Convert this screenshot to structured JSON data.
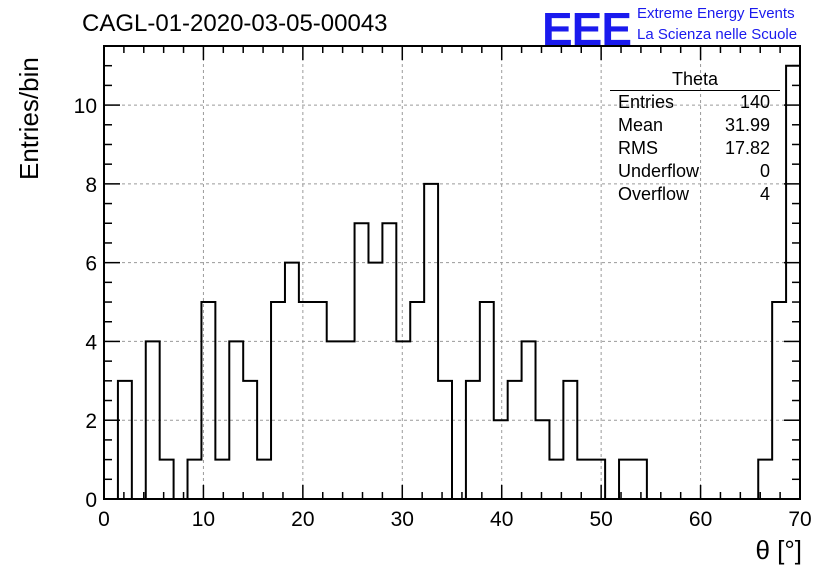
{
  "title": "CAGL-01-2020-03-05-00043",
  "logo": {
    "mark": "EEE",
    "line1": "Extreme Energy Events",
    "line2": "La Scienza nelle Scuole",
    "color": "#1a1aee"
  },
  "stats": {
    "name": "Theta",
    "rows": [
      {
        "label": "Entries",
        "value": "140"
      },
      {
        "label": "Mean",
        "value": "31.99"
      },
      {
        "label": "RMS",
        "value": "17.82"
      },
      {
        "label": "Underflow",
        "value": "0"
      },
      {
        "label": "Overflow",
        "value": "4"
      }
    ]
  },
  "chart_data": {
    "type": "bar",
    "style": "step-histogram",
    "xlabel": "θ [°]",
    "ylabel": "Entries/bin",
    "xlim": [
      0,
      70
    ],
    "ylim": [
      0,
      11.5
    ],
    "xticks": [
      0,
      10,
      20,
      30,
      40,
      50,
      60,
      70
    ],
    "yticks": [
      0,
      2,
      4,
      6,
      8,
      10
    ],
    "grid": true,
    "bin_edges": [
      0,
      1.4,
      2.8,
      4.2,
      5.6,
      7.0,
      8.4,
      9.8,
      11.2,
      12.6,
      14.0,
      15.4,
      16.8,
      18.2,
      19.6,
      21.0,
      22.4,
      23.8,
      25.2,
      26.6,
      28.0,
      29.4,
      30.8,
      32.2,
      33.6,
      35.0,
      36.4,
      37.8,
      39.2,
      40.6,
      42.0,
      43.4,
      44.8,
      46.2,
      47.6,
      49.0,
      50.4,
      51.8,
      53.2,
      54.6,
      56.0,
      57.4,
      58.8,
      60.2,
      61.6,
      63.0,
      64.4,
      65.8,
      67.2,
      68.6,
      70.0
    ],
    "values": [
      0,
      3,
      0,
      4,
      1,
      0,
      1,
      5,
      1,
      4,
      3,
      1,
      5,
      6,
      5,
      5,
      4,
      4,
      7,
      6,
      7,
      4,
      5,
      8,
      3,
      0,
      3,
      5,
      2,
      3,
      4,
      2,
      1,
      3,
      1,
      1,
      0,
      1,
      1,
      0,
      0,
      0,
      0,
      0,
      0,
      0,
      0,
      1,
      5,
      11
    ],
    "line_color": "#000000"
  }
}
